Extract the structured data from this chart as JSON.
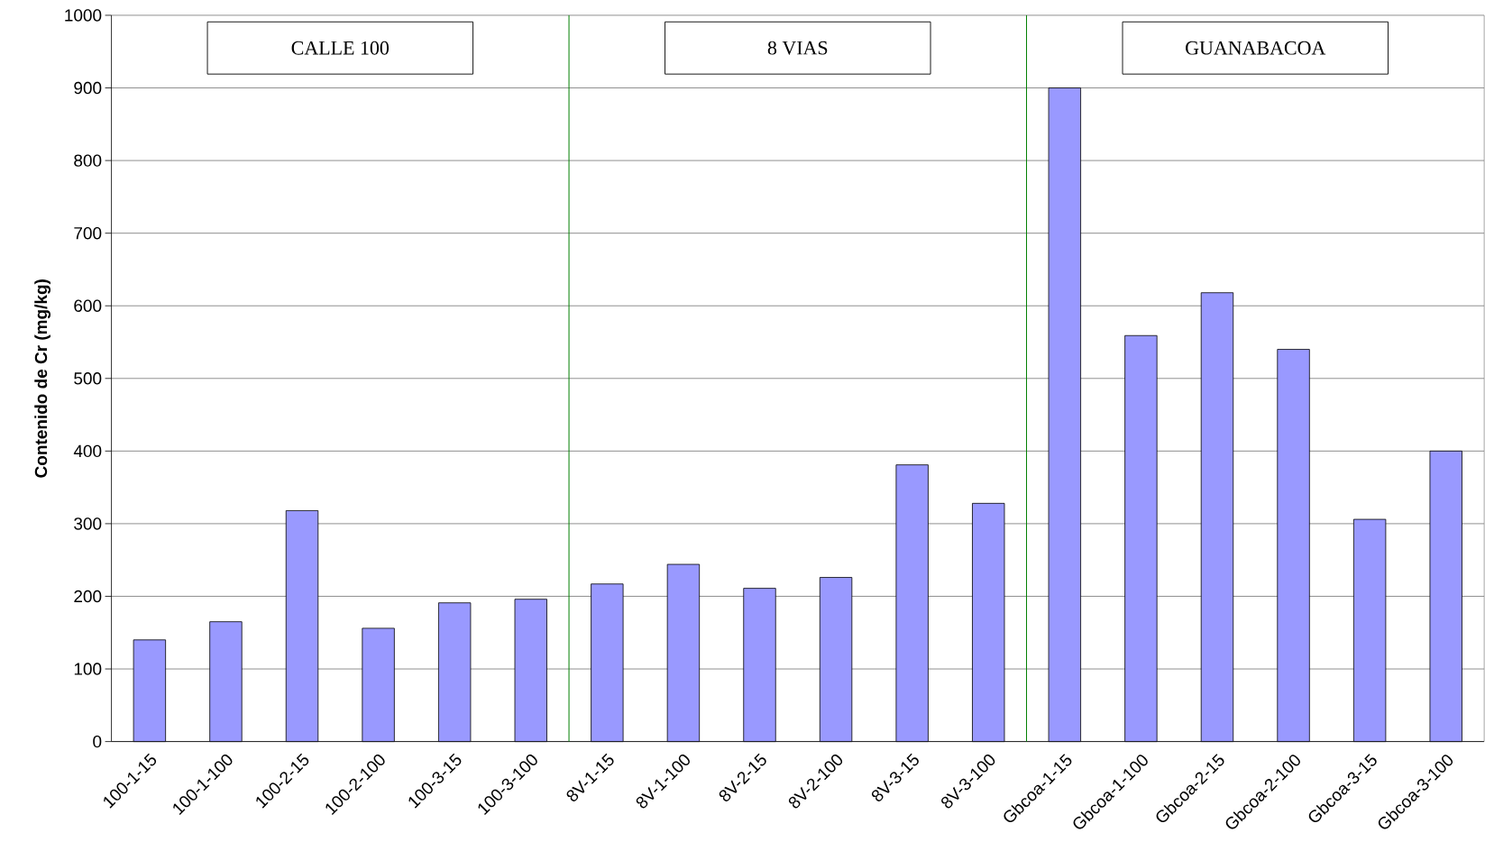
{
  "chart_data": {
    "type": "bar",
    "ylabel": "Contenido de Cr (mg/kg)",
    "categories": [
      "100-1-15",
      "100-1-100",
      "100-2-15",
      "100-2-100",
      "100-3-15",
      "100-3-100",
      "8V-1-15",
      "8V-1-100",
      "8V-2-15",
      "8V-2-100",
      "8V-3-15",
      "8V-3-100",
      "Gbcoa-1-15",
      "Gbcoa-1-100",
      "Gbcoa-2-15",
      "Gbcoa-2-100",
      "Gbcoa-3-15",
      "Gbcoa-3-100"
    ],
    "values": [
      140,
      165,
      318,
      156,
      191,
      196,
      217,
      244,
      211,
      226,
      381,
      328,
      900,
      559,
      618,
      540,
      306,
      400
    ],
    "color": "#9999ff",
    "ylim": [
      0,
      1000
    ],
    "yticks": [
      0,
      100,
      200,
      300,
      400,
      500,
      600,
      700,
      800,
      900,
      1000
    ],
    "grid": "y",
    "annotations": [
      "CALLE 100",
      "8 VIAS",
      "GUANABACOA"
    ]
  }
}
